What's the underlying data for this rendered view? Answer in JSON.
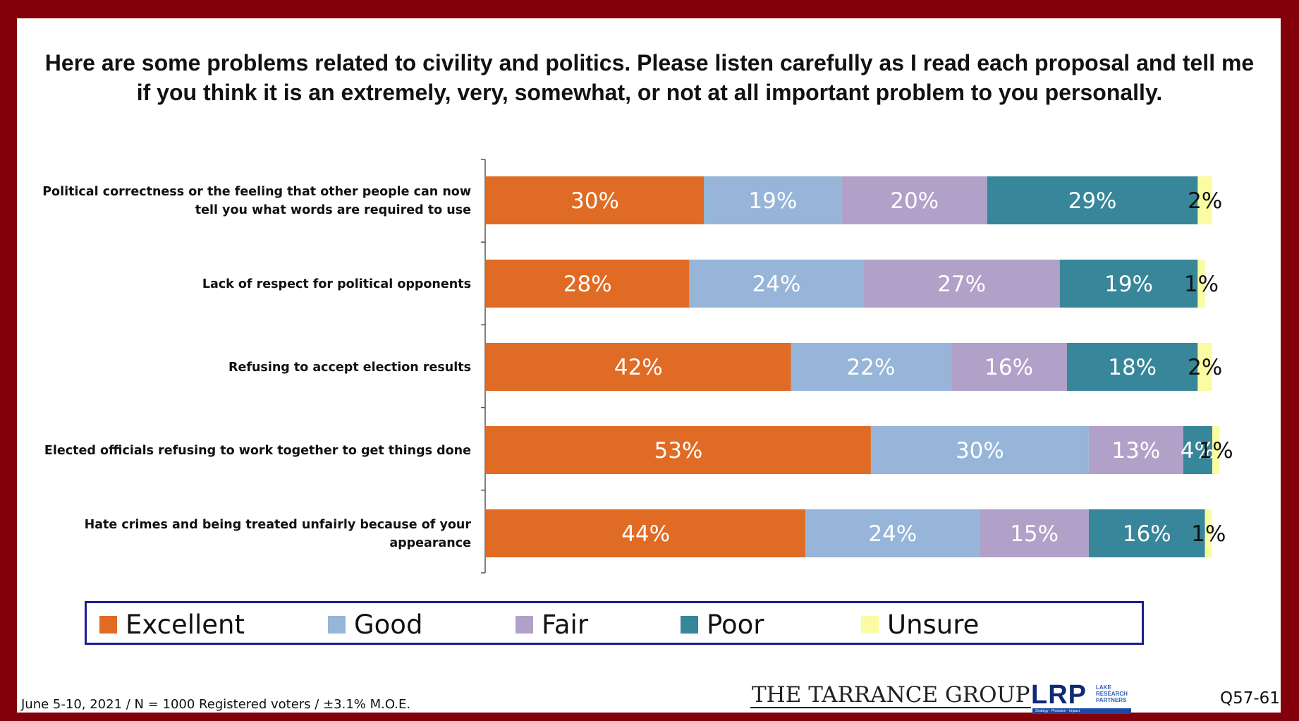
{
  "title": "Here are some problems related to civility and politics.  Please listen carefully as I read each proposal and tell me if you think it is an extremely, very, somewhat, or not at all important problem to you personally.",
  "chart_data": {
    "type": "bar",
    "orientation": "horizontal",
    "stacked": true,
    "title": "Here are some problems related to civility and politics.  Please listen carefully as I read each proposal and tell me if you think it is an extremely, very, somewhat, or not at all important problem to you personally.",
    "categories": [
      [
        "Political correctness or the feeling that other people can now",
        "tell you what words are required to use"
      ],
      [
        "Lack of respect for political opponents"
      ],
      [
        "Refusing to accept election results"
      ],
      [
        "Elected officials refusing to work together to get things done"
      ],
      [
        "Hate crimes and being treated unfairly because of your",
        "appearance"
      ]
    ],
    "series": [
      {
        "name": "Excellent",
        "color": "#e06b24",
        "label_color": "#ffffff",
        "values": [
          30,
          28,
          42,
          53,
          44
        ]
      },
      {
        "name": "Good",
        "color": "#96b5d8",
        "label_color": "#ffffff",
        "values": [
          19,
          24,
          22,
          30,
          24
        ]
      },
      {
        "name": "Fair",
        "color": "#b1a1c8",
        "label_color": "#ffffff",
        "values": [
          20,
          27,
          16,
          13,
          15
        ]
      },
      {
        "name": "Poor",
        "color": "#37869a",
        "label_color": "#ffffff",
        "values": [
          29,
          19,
          18,
          4,
          16
        ]
      },
      {
        "name": "Unsure",
        "color": "#fbfba3",
        "label_color": "#111111",
        "values": [
          2,
          1,
          2,
          1,
          1
        ]
      }
    ],
    "value_suffix": "%",
    "xlim": [
      0,
      100
    ],
    "grid": false,
    "legend_position": "bottom"
  },
  "legend": [
    {
      "name": "Excellent",
      "color": "#e06b24"
    },
    {
      "name": "Good",
      "color": "#96b5d8"
    },
    {
      "name": "Fair",
      "color": "#b1a1c8"
    },
    {
      "name": "Poor",
      "color": "#37869a"
    },
    {
      "name": "Unsure",
      "color": "#fbfba3"
    }
  ],
  "footer": {
    "note": "June 5-10, 2021 / N = 1000 Registered voters / ±3.1% M.O.E.",
    "logo_tarrance": "THE TARRANCE GROUP",
    "logo_lrp": "LRP",
    "logo_lrp_sub": "LAKE RESEARCH PARTNERS",
    "logo_lrp_tagline": "Strategy · Precision · Impact",
    "question_code": "Q57-61"
  }
}
